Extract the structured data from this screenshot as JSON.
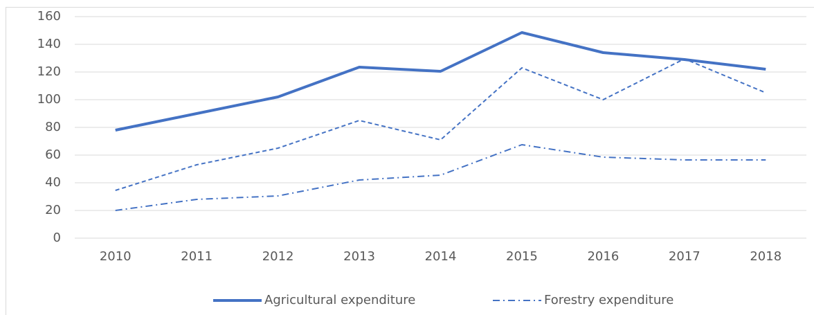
{
  "chart_data": {
    "type": "line",
    "categories": [
      "2010",
      "2011",
      "2012",
      "2013",
      "2014",
      "2015",
      "2016",
      "2017",
      "2018"
    ],
    "series": [
      {
        "name": "Agricultural expenditure",
        "color": "#4472c4",
        "dash": "solid",
        "values": [
          78,
          90,
          102,
          123.5,
          120.5,
          148.5,
          134,
          129,
          122
        ]
      },
      {
        "color": "#4472c4",
        "dash": "dash",
        "values": [
          34.5,
          53,
          65,
          85,
          71,
          123,
          100,
          129.5,
          105
        ]
      },
      {
        "name": "Forestry expenditure",
        "color": "#4472c4",
        "dash": "dashdot",
        "values": [
          20,
          28,
          30.5,
          42,
          45.5,
          67.5,
          58.5,
          56.5,
          56.5
        ]
      }
    ],
    "ylim": [
      0,
      160
    ],
    "yticks": [
      0,
      20,
      40,
      60,
      80,
      100,
      120,
      140,
      160
    ],
    "grid": true,
    "legend": "bottom"
  }
}
